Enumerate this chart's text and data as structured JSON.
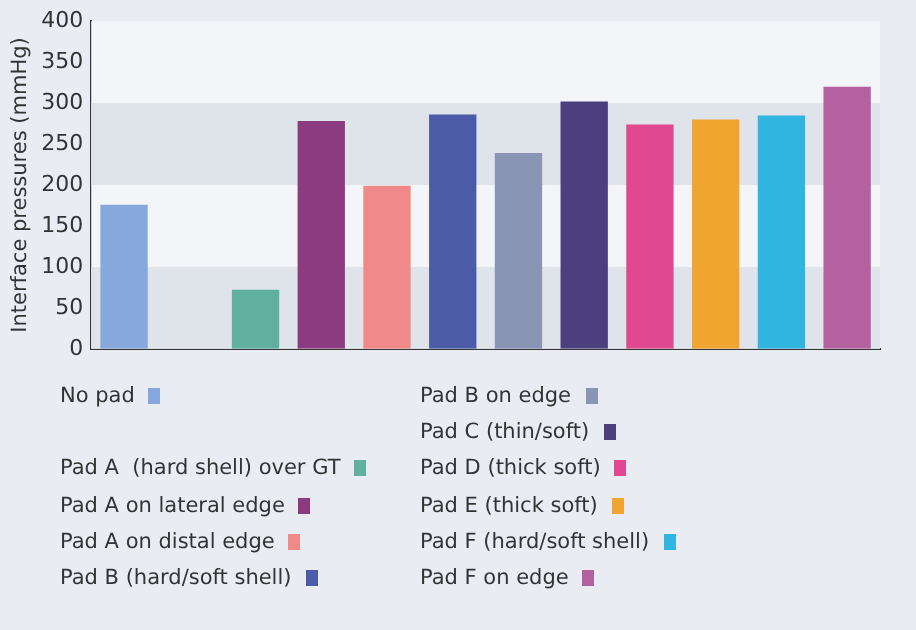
{
  "chart_data": {
    "type": "bar",
    "ylabel": "Interface pressures (mmHg)",
    "categories": [
      null,
      null,
      null,
      null,
      null,
      null,
      null,
      null,
      null,
      null,
      null,
      null
    ],
    "series": [
      {
        "name": "No pad",
        "color": "#86a8dc",
        "values": [
          176,
          null,
          null,
          null,
          null,
          null,
          null,
          null,
          null,
          null,
          null,
          null
        ]
      },
      {
        "name": "Pad A  (hard shell) over GT",
        "color": "#5fb0a0",
        "values": [
          null,
          null,
          72,
          null,
          null,
          null,
          null,
          null,
          null,
          null,
          null,
          null
        ]
      },
      {
        "name": "Pad A on lateral edge",
        "color": "#8c3b80",
        "values": [
          null,
          null,
          null,
          278,
          null,
          null,
          null,
          null,
          null,
          null,
          null,
          null
        ]
      },
      {
        "name": "Pad A on distal edge",
        "color": "#f08a8a",
        "values": [
          null,
          null,
          null,
          null,
          199,
          null,
          null,
          null,
          null,
          null,
          null,
          null
        ]
      },
      {
        "name": "Pad B (hard/soft shell)",
        "color": "#4b5ba8",
        "values": [
          null,
          null,
          null,
          null,
          null,
          286,
          null,
          null,
          null,
          null,
          null,
          null
        ]
      },
      {
        "name": "Pad B on edge",
        "color": "#8a95b5",
        "values": [
          null,
          null,
          null,
          null,
          null,
          null,
          239,
          null,
          null,
          null,
          null,
          null
        ]
      },
      {
        "name": "Pad C (thin/soft)",
        "color": "#4b3f7e",
        "values": [
          null,
          null,
          null,
          null,
          null,
          null,
          null,
          302,
          null,
          null,
          null,
          null
        ]
      },
      {
        "name": "Pad D (thick soft)",
        "color": "#e0488f",
        "values": [
          null,
          null,
          null,
          null,
          null,
          null,
          null,
          null,
          274,
          null,
          null,
          null
        ]
      },
      {
        "name": "Pad E (thick soft)",
        "color": "#f0a530",
        "values": [
          null,
          null,
          null,
          null,
          null,
          null,
          null,
          null,
          null,
          280,
          null,
          null
        ]
      },
      {
        "name": "Pad F (hard/soft shell)",
        "color": "#30b5e0",
        "values": [
          null,
          null,
          null,
          null,
          null,
          null,
          null,
          null,
          null,
          null,
          285,
          null
        ]
      },
      {
        "name": "Pad F on edge",
        "color": "#b3619f",
        "values": [
          null,
          null,
          null,
          null,
          null,
          null,
          null,
          null,
          null,
          null,
          null,
          320
        ]
      }
    ],
    "ylim": [
      0,
      400
    ],
    "yticks": [
      0,
      50,
      100,
      150,
      200,
      250,
      300,
      350,
      400
    ],
    "bands": [
      {
        "axis": "y",
        "from": 0,
        "to": 100,
        "color": "#dfe3ea"
      },
      {
        "axis": "y",
        "from": 200,
        "to": 300,
        "color": "#dfe3ea"
      }
    ],
    "tick_labels": "y",
    "grid": false,
    "legend": "bottom"
  }
}
